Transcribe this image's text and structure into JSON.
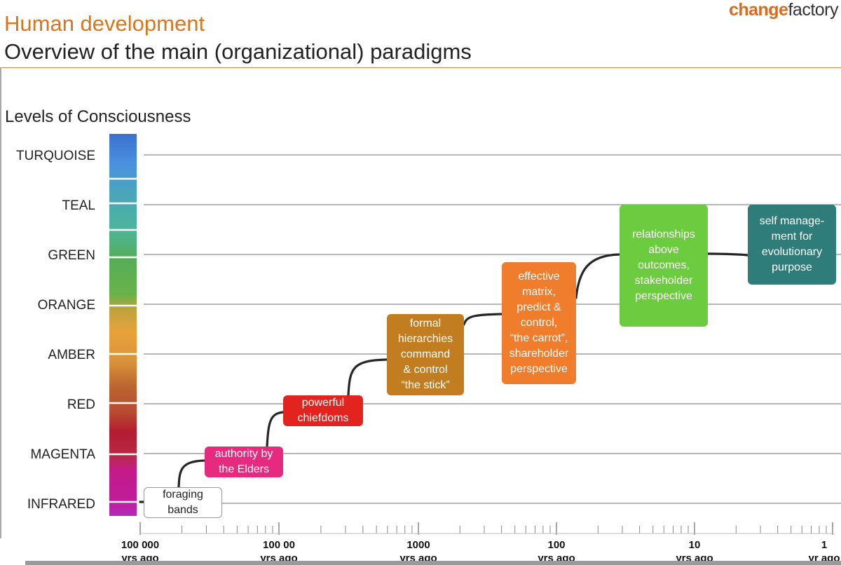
{
  "brand": {
    "part1": "change",
    "part2": "factory"
  },
  "title": "Human development",
  "subtitle": "Overview of the main (organizational) paradigms",
  "levels_heading": "Levels of Consciousness",
  "levels": [
    {
      "name": "TURQUOISE",
      "color": "#3f86d6"
    },
    {
      "name": "TEAL",
      "color": "#49b096"
    },
    {
      "name": "GREEN",
      "color": "#5aae4c"
    },
    {
      "name": "ORANGE",
      "color": "#e69e34"
    },
    {
      "name": "AMBER",
      "color": "#bf6a33"
    },
    {
      "name": "RED",
      "color": "#b42434"
    },
    {
      "name": "MAGENTA",
      "color": "#c21a8a"
    },
    {
      "name": "INFRARED",
      "color": "#b528b8"
    }
  ],
  "time_axis": [
    {
      "value": "100 000",
      "unit": "yrs ago"
    },
    {
      "value": "100 00",
      "unit": "yrs ago"
    },
    {
      "value": "1000",
      "unit": "yrs ago"
    },
    {
      "value": "100",
      "unit": "yrs ago"
    },
    {
      "value": "10",
      "unit": "yrs ago"
    },
    {
      "value": "1",
      "unit": "yr ago"
    }
  ],
  "eras": [
    {
      "text": "foraging\nbands",
      "level": "INFRARED",
      "color": "#ffffff",
      "text_color": "#222222"
    },
    {
      "text": "authority by\nthe Elders",
      "level": "MAGENTA",
      "color": "#e62a7f",
      "text_color": "#ffffff"
    },
    {
      "text": "powerful\nchiefdoms",
      "level": "RED",
      "color": "#e2231e",
      "text_color": "#ffffff"
    },
    {
      "text": "formal\nhierarchies\ncommand\n& control\n“the stick”",
      "level": "AMBER",
      "color": "#c27d20",
      "text_color": "#ffffff"
    },
    {
      "text": "effective\nmatrix,\npredict &\ncontrol,\n“the carrot”,\nshareholder\nperspective",
      "level": "ORANGE",
      "color": "#f07d2c",
      "text_color": "#ffffff"
    },
    {
      "text": "relationships\nabove\noutcomes,\nstakeholder\nperspective",
      "level": "GREEN",
      "color": "#6ccb3f",
      "text_color": "#ffffff"
    },
    {
      "text": "self manage-\nment for\nevolutionary\npurpose",
      "level": "TEAL",
      "color": "#2e7d7a",
      "text_color": "#ffffff"
    }
  ]
}
